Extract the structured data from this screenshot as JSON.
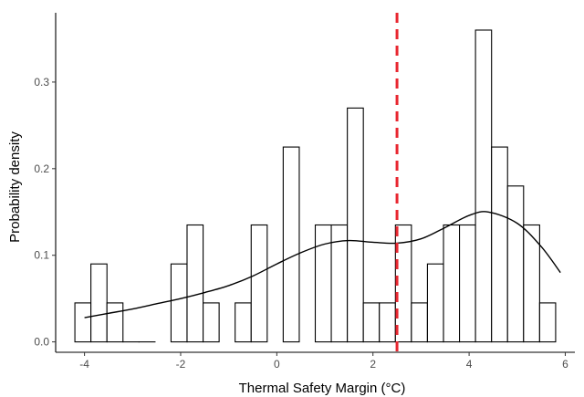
{
  "chart_data": {
    "type": "histogram",
    "title": "",
    "xlabel": "Thermal Safety Margin (°C)",
    "ylabel": "Probability density",
    "xlim": [
      -4.6,
      6.2
    ],
    "ylim": [
      -0.012,
      0.38
    ],
    "x_ticks": [
      -4,
      -2,
      0,
      2,
      4,
      6
    ],
    "y_ticks": [
      0.0,
      0.1,
      0.2,
      0.3
    ],
    "x_tick_labels": [
      "-4",
      "-2",
      "0",
      "2",
      "4",
      "6"
    ],
    "y_tick_labels": [
      "0.0",
      "0.1",
      "0.2",
      "0.3"
    ],
    "grid": false,
    "legend": "none",
    "bins": [
      {
        "x0": -4.2,
        "x1": -3.867,
        "density": 0.045
      },
      {
        "x0": -3.867,
        "x1": -3.533,
        "density": 0.09
      },
      {
        "x0": -3.533,
        "x1": -3.2,
        "density": 0.045
      },
      {
        "x0": -3.2,
        "x1": -2.867,
        "density": 0.0
      },
      {
        "x0": -2.867,
        "x1": -2.533,
        "density": 0.0
      },
      {
        "x0": -2.2,
        "x1": -1.867,
        "density": 0.09
      },
      {
        "x0": -1.867,
        "x1": -1.533,
        "density": 0.135
      },
      {
        "x0": -1.533,
        "x1": -1.2,
        "density": 0.045
      },
      {
        "x0": -0.867,
        "x1": -0.533,
        "density": 0.045
      },
      {
        "x0": -0.533,
        "x1": -0.2,
        "density": 0.135
      },
      {
        "x0": 0.133,
        "x1": 0.467,
        "density": 0.225
      },
      {
        "x0": 0.8,
        "x1": 1.133,
        "density": 0.135
      },
      {
        "x0": 1.133,
        "x1": 1.467,
        "density": 0.135
      },
      {
        "x0": 1.467,
        "x1": 1.8,
        "density": 0.27
      },
      {
        "x0": 1.8,
        "x1": 2.133,
        "density": 0.045
      },
      {
        "x0": 2.133,
        "x1": 2.467,
        "density": 0.045
      },
      {
        "x0": 2.467,
        "x1": 2.8,
        "density": 0.135
      },
      {
        "x0": 2.8,
        "x1": 3.133,
        "density": 0.045
      },
      {
        "x0": 3.133,
        "x1": 3.467,
        "density": 0.09
      },
      {
        "x0": 3.467,
        "x1": 3.8,
        "density": 0.135
      },
      {
        "x0": 3.8,
        "x1": 4.133,
        "density": 0.135
      },
      {
        "x0": 4.133,
        "x1": 4.467,
        "density": 0.36
      },
      {
        "x0": 4.467,
        "x1": 4.8,
        "density": 0.225
      },
      {
        "x0": 4.8,
        "x1": 5.133,
        "density": 0.18
      },
      {
        "x0": 5.133,
        "x1": 5.467,
        "density": 0.135
      },
      {
        "x0": 5.467,
        "x1": 5.8,
        "density": 0.045
      }
    ],
    "density_curve": {
      "x": [
        -4.0,
        -3.5,
        -3.0,
        -2.5,
        -2.0,
        -1.5,
        -1.0,
        -0.5,
        0.0,
        0.5,
        1.0,
        1.5,
        2.0,
        2.5,
        3.0,
        3.5,
        4.0,
        4.4,
        5.0,
        5.5,
        5.9
      ],
      "y": [
        0.028,
        0.033,
        0.038,
        0.044,
        0.05,
        0.057,
        0.065,
        0.076,
        0.09,
        0.103,
        0.113,
        0.117,
        0.115,
        0.114,
        0.119,
        0.132,
        0.146,
        0.15,
        0.137,
        0.11,
        0.08
      ]
    },
    "reference_line": {
      "x": 2.5,
      "style": "dashed",
      "color": "#e8262f"
    },
    "colors": {
      "bar_fill": "#ffffff",
      "bar_outline": "#000000",
      "curve": "#000000",
      "axis": "#000000",
      "text": "#4d4d4d"
    }
  }
}
